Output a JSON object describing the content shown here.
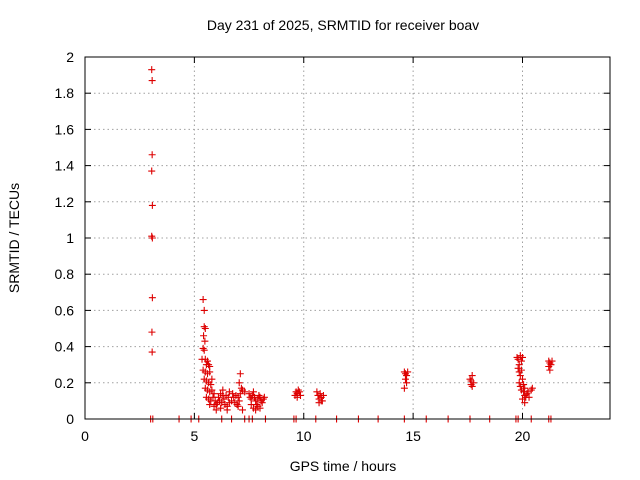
{
  "chart_data": {
    "type": "scatter",
    "title": "Day 231 of 2025, SRMTID for receiver boav",
    "xlabel": "GPS time / hours",
    "ylabel": "SRMTID / TECUs",
    "xlim": [
      0,
      24
    ],
    "ylim": [
      0,
      2
    ],
    "x_ticks": [
      0,
      5,
      10,
      15,
      20
    ],
    "x_tick_labels": [
      "0",
      "5",
      "10",
      "15",
      "20"
    ],
    "y_ticks": [
      0,
      0.2,
      0.4,
      0.6,
      0.8,
      1.0,
      1.2,
      1.4,
      1.6,
      1.8,
      2.0
    ],
    "y_tick_labels": [
      "0",
      "0.2",
      "0.4",
      "0.6",
      "0.8",
      "1",
      "1.2",
      "1.4",
      "1.6",
      "1.8",
      "2"
    ],
    "grid": true,
    "marker": "+",
    "color": "#dd0000",
    "series": [
      {
        "name": "SRMTID",
        "points": [
          [
            3.05,
            1.93
          ],
          [
            3.07,
            1.87
          ],
          [
            3.07,
            1.46
          ],
          [
            3.05,
            1.37
          ],
          [
            3.08,
            1.18
          ],
          [
            3.05,
            1.01
          ],
          [
            3.08,
            1.0
          ],
          [
            3.08,
            0.67
          ],
          [
            3.06,
            0.48
          ],
          [
            3.07,
            0.37
          ],
          [
            3.0,
            0.0
          ],
          [
            3.1,
            0.0
          ],
          [
            4.3,
            0.0
          ],
          [
            4.85,
            0.0
          ],
          [
            5.2,
            0.0
          ],
          [
            5.4,
            0.66
          ],
          [
            5.45,
            0.6
          ],
          [
            5.45,
            0.51
          ],
          [
            5.5,
            0.5
          ],
          [
            5.42,
            0.46
          ],
          [
            5.48,
            0.43
          ],
          [
            5.4,
            0.39
          ],
          [
            5.45,
            0.38
          ],
          [
            5.35,
            0.33
          ],
          [
            5.5,
            0.33
          ],
          [
            5.55,
            0.3
          ],
          [
            5.6,
            0.32
          ],
          [
            5.65,
            0.3
          ],
          [
            5.7,
            0.29
          ],
          [
            5.4,
            0.27
          ],
          [
            5.5,
            0.26
          ],
          [
            5.6,
            0.25
          ],
          [
            5.7,
            0.26
          ],
          [
            5.45,
            0.22
          ],
          [
            5.55,
            0.21
          ],
          [
            5.65,
            0.2
          ],
          [
            5.75,
            0.19
          ],
          [
            5.8,
            0.22
          ],
          [
            5.5,
            0.17
          ],
          [
            5.6,
            0.16
          ],
          [
            5.7,
            0.15
          ],
          [
            5.8,
            0.16
          ],
          [
            5.9,
            0.14
          ],
          [
            5.55,
            0.12
          ],
          [
            5.65,
            0.11
          ],
          [
            5.75,
            0.1
          ],
          [
            5.85,
            0.12
          ],
          [
            5.95,
            0.1
          ],
          [
            6.05,
            0.09
          ],
          [
            5.7,
            0.08
          ],
          [
            5.9,
            0.07
          ],
          [
            6.0,
            0.08
          ],
          [
            6.1,
            0.12
          ],
          [
            6.2,
            0.14
          ],
          [
            6.3,
            0.16
          ],
          [
            6.15,
            0.1
          ],
          [
            6.25,
            0.09
          ],
          [
            6.35,
            0.11
          ],
          [
            6.45,
            0.13
          ],
          [
            6.55,
            0.12
          ],
          [
            6.4,
            0.08
          ],
          [
            6.5,
            0.07
          ],
          [
            6.6,
            0.09
          ],
          [
            6.7,
            0.1
          ],
          [
            6.8,
            0.12
          ],
          [
            6.3,
            0.13
          ],
          [
            6.6,
            0.15
          ],
          [
            6.75,
            0.14
          ],
          [
            6.9,
            0.13
          ],
          [
            7.0,
            0.12
          ],
          [
            6.85,
            0.09
          ],
          [
            6.95,
            0.08
          ],
          [
            7.05,
            0.1
          ],
          [
            7.1,
            0.14
          ],
          [
            7.15,
            0.17
          ],
          [
            7.05,
            0.2
          ],
          [
            7.1,
            0.25
          ],
          [
            7.2,
            0.16
          ],
          [
            7.3,
            0.15
          ],
          [
            7.0,
            0.07
          ],
          [
            6.2,
            0.06
          ],
          [
            6.5,
            0.05
          ],
          [
            6.0,
            0.05
          ],
          [
            7.2,
            0.05
          ],
          [
            7.5,
            0.14
          ],
          [
            7.55,
            0.12
          ],
          [
            7.6,
            0.11
          ],
          [
            7.65,
            0.13
          ],
          [
            7.7,
            0.15
          ],
          [
            7.75,
            0.12
          ],
          [
            7.8,
            0.1
          ],
          [
            7.85,
            0.08
          ],
          [
            7.9,
            0.11
          ],
          [
            7.95,
            0.13
          ],
          [
            8.0,
            0.12
          ],
          [
            8.05,
            0.1
          ],
          [
            8.1,
            0.09
          ],
          [
            8.15,
            0.11
          ],
          [
            8.2,
            0.12
          ],
          [
            7.7,
            0.06
          ],
          [
            7.8,
            0.05
          ],
          [
            7.9,
            0.07
          ],
          [
            7.6,
            0.08
          ],
          [
            8.0,
            0.06
          ],
          [
            7.5,
            0.0
          ],
          [
            7.65,
            0.0
          ],
          [
            8.25,
            0.0
          ],
          [
            7.3,
            0.0
          ],
          [
            6.25,
            0.0
          ],
          [
            6.7,
            0.0
          ],
          [
            9.6,
            0.13
          ],
          [
            9.65,
            0.15
          ],
          [
            9.7,
            0.14
          ],
          [
            9.75,
            0.16
          ],
          [
            9.8,
            0.15
          ],
          [
            9.85,
            0.13
          ],
          [
            9.55,
            0.0
          ],
          [
            9.65,
            0.0
          ],
          [
            9.7,
            0.12
          ],
          [
            10.6,
            0.15
          ],
          [
            10.65,
            0.13
          ],
          [
            10.7,
            0.11
          ],
          [
            10.75,
            0.14
          ],
          [
            10.8,
            0.12
          ],
          [
            10.85,
            0.1
          ],
          [
            10.9,
            0.13
          ],
          [
            10.7,
            0.09
          ],
          [
            10.8,
            0.1
          ],
          [
            10.55,
            0.0
          ],
          [
            11.5,
            0.0
          ],
          [
            12.5,
            0.0
          ],
          [
            13.4,
            0.0
          ],
          [
            14.6,
            0.26
          ],
          [
            14.65,
            0.25
          ],
          [
            14.7,
            0.24
          ],
          [
            14.75,
            0.26
          ],
          [
            14.65,
            0.22
          ],
          [
            14.7,
            0.2
          ],
          [
            14.6,
            0.17
          ],
          [
            14.6,
            0.0
          ],
          [
            15.6,
            0.0
          ],
          [
            16.6,
            0.0
          ],
          [
            17.6,
            0.22
          ],
          [
            17.65,
            0.21
          ],
          [
            17.7,
            0.24
          ],
          [
            17.75,
            0.2
          ],
          [
            17.65,
            0.19
          ],
          [
            17.7,
            0.18
          ],
          [
            17.6,
            0.0
          ],
          [
            18.5,
            0.0
          ],
          [
            19.75,
            0.34
          ],
          [
            19.8,
            0.33
          ],
          [
            19.85,
            0.3
          ],
          [
            19.9,
            0.35
          ],
          [
            19.95,
            0.32
          ],
          [
            20.0,
            0.34
          ],
          [
            19.8,
            0.28
          ],
          [
            19.85,
            0.26
          ],
          [
            19.9,
            0.24
          ],
          [
            19.95,
            0.27
          ],
          [
            20.0,
            0.22
          ],
          [
            19.85,
            0.2
          ],
          [
            19.9,
            0.18
          ],
          [
            19.95,
            0.16
          ],
          [
            20.05,
            0.15
          ],
          [
            20.1,
            0.13
          ],
          [
            20.15,
            0.12
          ],
          [
            20.0,
            0.11
          ],
          [
            20.1,
            0.09
          ],
          [
            20.2,
            0.14
          ],
          [
            20.25,
            0.15
          ],
          [
            20.3,
            0.12
          ],
          [
            20.4,
            0.16
          ],
          [
            20.45,
            0.17
          ],
          [
            20.05,
            0.19
          ],
          [
            20.1,
            0.17
          ],
          [
            19.7,
            0.0
          ],
          [
            19.8,
            0.0
          ],
          [
            20.4,
            0.0
          ],
          [
            21.2,
            0.32
          ],
          [
            21.25,
            0.31
          ],
          [
            21.3,
            0.3
          ],
          [
            21.2,
            0.29
          ],
          [
            21.25,
            0.27
          ],
          [
            21.35,
            0.32
          ],
          [
            21.2,
            0.0
          ],
          [
            21.3,
            0.0
          ]
        ]
      }
    ]
  }
}
